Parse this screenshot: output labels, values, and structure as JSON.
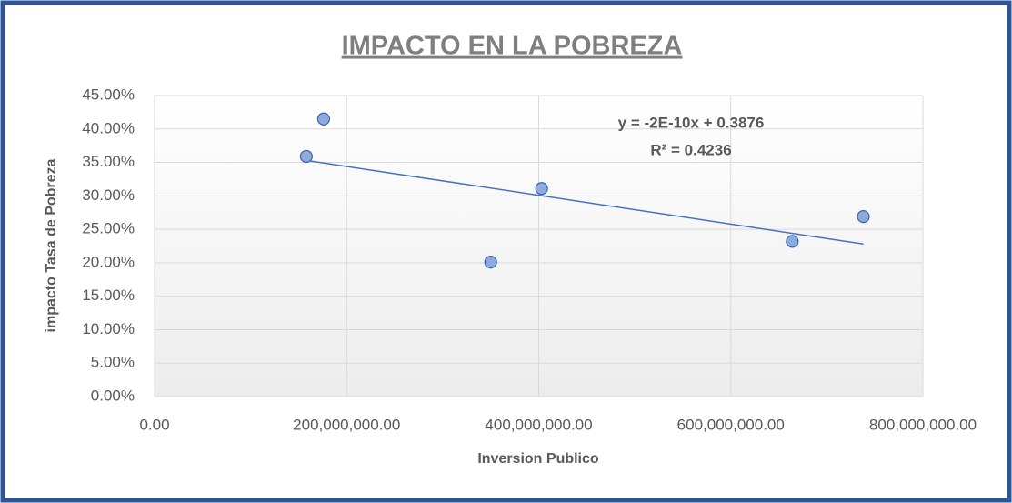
{
  "chart_data": {
    "type": "scatter",
    "title": "IMPACTO EN LA POBREZA",
    "x_label": "Inversion Publico",
    "y_label": "impacto Tasa de Pobreza",
    "series": [
      {
        "name": "impacto Tasa de Pobreza",
        "color": "#8faadc",
        "x": [
          158000000,
          176000000,
          350000000,
          403000000,
          664000000,
          738000000
        ],
        "values": [
          35.9,
          41.5,
          20.1,
          31.1,
          23.2,
          26.9
        ]
      }
    ],
    "trendline": {
      "color": "#4472c4",
      "x": [
        158000000,
        738000000
      ],
      "values": [
        35.3,
        22.8
      ],
      "annotations": [
        "y = -2E-10x + 0.3876",
        "R² = 0.4236"
      ]
    },
    "xlim": [
      0,
      800000000
    ],
    "xticks": [
      {
        "value": 0,
        "label": "0.00"
      },
      {
        "value": 200000000,
        "label": "200,000,000.00"
      },
      {
        "value": 400000000,
        "label": "400,000,000.00"
      },
      {
        "value": 600000000,
        "label": "600,000,000.00"
      },
      {
        "value": 800000000,
        "label": "800,000,000.00"
      }
    ],
    "ylim": [
      0,
      45
    ],
    "yticks": [
      {
        "value": 0,
        "label": "0.00%"
      },
      {
        "value": 5,
        "label": "5.00%"
      },
      {
        "value": 10,
        "label": "10.00%"
      },
      {
        "value": 15,
        "label": "15.00%"
      },
      {
        "value": 20,
        "label": "20.00%"
      },
      {
        "value": 25,
        "label": "25.00%"
      },
      {
        "value": 30,
        "label": "30.00%"
      },
      {
        "value": 35,
        "label": "35.00%"
      },
      {
        "value": 40,
        "label": "40.00%"
      },
      {
        "value": 45,
        "label": "45.00%"
      }
    ],
    "grid": true
  }
}
